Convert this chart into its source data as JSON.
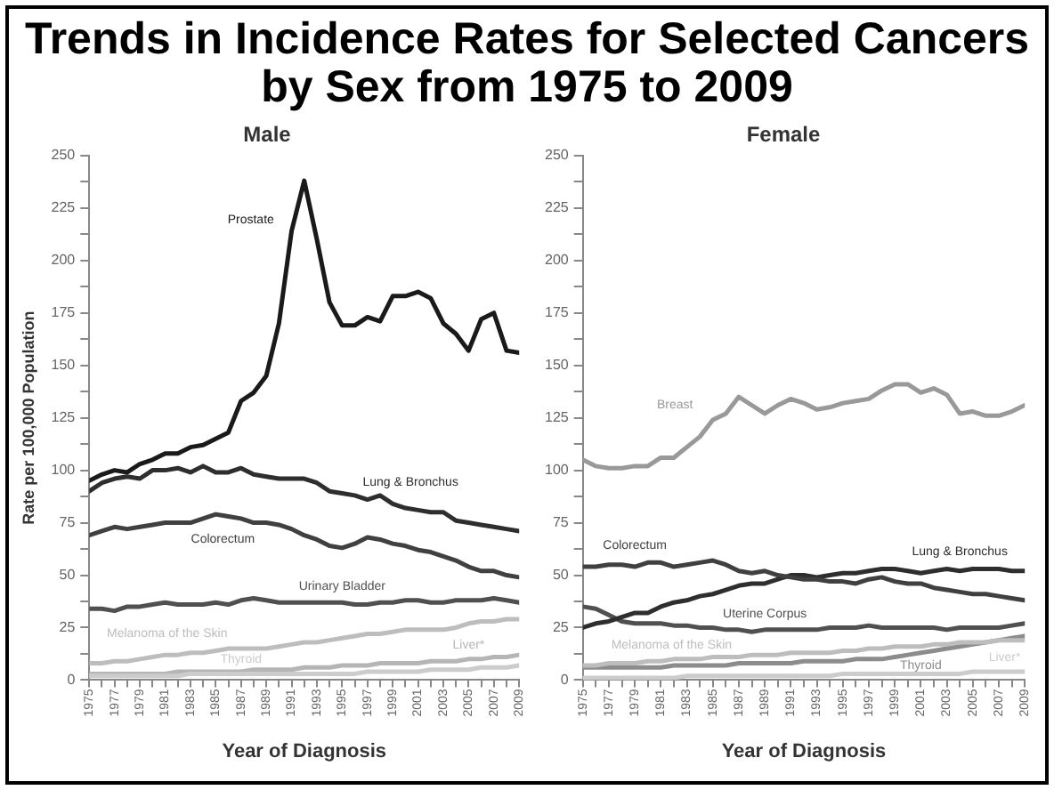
{
  "chart_data": [
    {
      "type": "line",
      "title": "Trends in Incidence Rates for Selected Cancers by Sex from 1975 to 2009",
      "subtitle": "Male",
      "xlabel": "Year of Diagnosis",
      "ylabel": "Rate per 100,000 Population",
      "x": [
        1975,
        1976,
        1977,
        1978,
        1979,
        1980,
        1981,
        1982,
        1983,
        1984,
        1985,
        1986,
        1987,
        1988,
        1989,
        1990,
        1991,
        1992,
        1993,
        1994,
        1995,
        1996,
        1997,
        1998,
        1999,
        2000,
        2001,
        2002,
        2003,
        2004,
        2005,
        2006,
        2007,
        2008,
        2009
      ],
      "xlim": [
        1975,
        2009
      ],
      "xticks": [
        1975,
        {
          "value": 1976,
          "label": null
        },
        1977,
        {
          "value": 1978,
          "label": null
        },
        1979,
        {
          "value": 1980,
          "label": null
        },
        1981,
        {
          "value": 1982,
          "label": null
        },
        1983,
        {
          "value": 1984,
          "label": null
        },
        1985,
        {
          "value": 1986,
          "label": null
        },
        1987,
        {
          "value": 1988,
          "label": null
        },
        1989,
        {
          "value": 1990,
          "label": null
        },
        1991,
        {
          "value": 1992,
          "label": null
        },
        1993,
        {
          "value": 1994,
          "label": null
        },
        1995,
        {
          "value": 1996,
          "label": null
        },
        1997,
        {
          "value": 1998,
          "label": null
        },
        1999,
        {
          "value": 2000,
          "label": null
        },
        2001,
        {
          "value": 2002,
          "label": null
        },
        2003,
        {
          "value": 2004,
          "label": null
        },
        2005,
        {
          "value": 2006,
          "label": null
        },
        2007,
        {
          "value": 2008,
          "label": null
        },
        2009
      ],
      "ylim": [
        0,
        250
      ],
      "yticks": [
        0,
        {
          "value": 12.5,
          "label": null
        },
        25,
        {
          "value": 37.5,
          "label": null
        },
        50,
        {
          "value": 62.5,
          "label": null
        },
        75,
        {
          "value": 87.5,
          "label": null
        },
        100,
        {
          "value": 112.5,
          "label": null
        },
        125,
        {
          "value": 137.5,
          "label": null
        },
        150,
        {
          "value": 162.5,
          "label": null
        },
        175,
        {
          "value": 187.5,
          "label": null
        },
        200,
        {
          "value": 212.5,
          "label": null
        },
        225,
        {
          "value": 237.5,
          "label": null
        },
        250
      ],
      "grid": false,
      "legend": false,
      "series": [
        {
          "name": "Prostate",
          "color": "#1a1a1a",
          "values": [
            95,
            98,
            100,
            99,
            103,
            105,
            108,
            108,
            111,
            112,
            115,
            118,
            133,
            137,
            145,
            170,
            214,
            238,
            210,
            180,
            169,
            169,
            173,
            171,
            183,
            183,
            185,
            182,
            170,
            165,
            157,
            172,
            175,
            157,
            156
          ]
        },
        {
          "name": "Lung & Bronchus",
          "color": "#2e2e2e",
          "values": [
            90,
            94,
            96,
            97,
            96,
            100,
            100,
            101,
            99,
            102,
            99,
            99,
            101,
            98,
            97,
            96,
            96,
            96,
            94,
            90,
            89,
            88,
            86,
            88,
            84,
            82,
            81,
            80,
            80,
            76,
            75,
            74,
            73,
            72,
            71
          ]
        },
        {
          "name": "Colorectum",
          "color": "#404040",
          "values": [
            69,
            71,
            73,
            72,
            73,
            74,
            75,
            75,
            75,
            77,
            79,
            78,
            77,
            75,
            75,
            74,
            72,
            69,
            67,
            64,
            63,
            65,
            68,
            67,
            65,
            64,
            62,
            61,
            59,
            57,
            54,
            52,
            52,
            50,
            49
          ]
        },
        {
          "name": "Urinary Bladder",
          "color": "#505050",
          "values": [
            34,
            34,
            33,
            35,
            35,
            36,
            37,
            36,
            36,
            36,
            37,
            36,
            38,
            39,
            38,
            37,
            37,
            37,
            37,
            37,
            37,
            36,
            36,
            37,
            37,
            38,
            38,
            37,
            37,
            38,
            38,
            38,
            39,
            38,
            37
          ]
        },
        {
          "name": "Melanoma of the Skin",
          "color": "#bdbdbd",
          "values": [
            8,
            8,
            9,
            9,
            10,
            11,
            12,
            12,
            13,
            13,
            14,
            15,
            15,
            15,
            15,
            16,
            17,
            18,
            18,
            19,
            20,
            21,
            22,
            22,
            23,
            24,
            24,
            24,
            24,
            25,
            27,
            28,
            28,
            29,
            29
          ]
        },
        {
          "name": "Thyroid",
          "color": "#cccccc",
          "values": [
            2,
            2,
            2,
            2,
            2,
            2,
            2,
            2,
            3,
            3,
            3,
            3,
            3,
            3,
            3,
            3,
            3,
            3,
            3,
            3,
            3,
            3,
            4,
            4,
            4,
            4,
            4,
            5,
            5,
            5,
            5,
            6,
            6,
            6,
            7
          ]
        },
        {
          "name": "Liver*",
          "color": "#b5b5b5",
          "values": [
            3,
            3,
            3,
            3,
            3,
            3,
            3,
            4,
            4,
            4,
            4,
            4,
            4,
            5,
            5,
            5,
            5,
            6,
            6,
            6,
            7,
            7,
            7,
            8,
            8,
            8,
            8,
            9,
            9,
            9,
            10,
            10,
            11,
            11,
            12
          ]
        }
      ]
    },
    {
      "type": "line",
      "title": "Female",
      "xlabel": "Year of Diagnosis",
      "x": [
        1975,
        1976,
        1977,
        1978,
        1979,
        1980,
        1981,
        1982,
        1983,
        1984,
        1985,
        1986,
        1987,
        1988,
        1989,
        1990,
        1991,
        1992,
        1993,
        1994,
        1995,
        1996,
        1997,
        1998,
        1999,
        2000,
        2001,
        2002,
        2003,
        2004,
        2005,
        2006,
        2007,
        2008,
        2009
      ],
      "xlim": [
        1975,
        2009
      ],
      "xticks": [
        1975,
        {
          "value": 1976,
          "label": null
        },
        1977,
        {
          "value": 1978,
          "label": null
        },
        1979,
        {
          "value": 1980,
          "label": null
        },
        1981,
        {
          "value": 1982,
          "label": null
        },
        1983,
        {
          "value": 1984,
          "label": null
        },
        1985,
        {
          "value": 1986,
          "label": null
        },
        1987,
        {
          "value": 1988,
          "label": null
        },
        1989,
        {
          "value": 1990,
          "label": null
        },
        1991,
        {
          "value": 1992,
          "label": null
        },
        1993,
        {
          "value": 1994,
          "label": null
        },
        1995,
        {
          "value": 1996,
          "label": null
        },
        1997,
        {
          "value": 1998,
          "label": null
        },
        1999,
        {
          "value": 2000,
          "label": null
        },
        2001,
        {
          "value": 2002,
          "label": null
        },
        2003,
        {
          "value": 2004,
          "label": null
        },
        2005,
        {
          "value": 2006,
          "label": null
        },
        2007,
        {
          "value": 2008,
          "label": null
        },
        2009
      ],
      "ylim": [
        0,
        250
      ],
      "yticks": [
        0,
        {
          "value": 12.5,
          "label": null
        },
        25,
        {
          "value": 37.5,
          "label": null
        },
        50,
        {
          "value": 62.5,
          "label": null
        },
        75,
        {
          "value": 87.5,
          "label": null
        },
        100,
        {
          "value": 112.5,
          "label": null
        },
        125,
        {
          "value": 137.5,
          "label": null
        },
        150,
        {
          "value": 162.5,
          "label": null
        },
        175,
        {
          "value": 187.5,
          "label": null
        },
        200,
        {
          "value": 212.5,
          "label": null
        },
        225,
        {
          "value": 237.5,
          "label": null
        },
        250
      ],
      "grid": false,
      "legend": false,
      "series": [
        {
          "name": "Breast",
          "color": "#999999",
          "values": [
            105,
            102,
            101,
            101,
            102,
            102,
            106,
            106,
            111,
            116,
            124,
            127,
            135,
            131,
            127,
            131,
            134,
            132,
            129,
            130,
            132,
            133,
            134,
            138,
            141,
            141,
            137,
            139,
            136,
            127,
            128,
            126,
            126,
            128,
            131
          ]
        },
        {
          "name": "Colorectum",
          "color": "#404040",
          "values": [
            54,
            54,
            55,
            55,
            54,
            56,
            56,
            54,
            55,
            56,
            57,
            55,
            52,
            51,
            52,
            50,
            49,
            48,
            48,
            47,
            47,
            46,
            48,
            49,
            47,
            46,
            46,
            44,
            43,
            42,
            41,
            41,
            40,
            39,
            38
          ]
        },
        {
          "name": "Lung & Bronchus",
          "color": "#2e2e2e",
          "values": [
            25,
            27,
            28,
            30,
            32,
            32,
            35,
            37,
            38,
            40,
            41,
            43,
            45,
            46,
            46,
            48,
            50,
            50,
            49,
            50,
            51,
            51,
            52,
            53,
            53,
            52,
            51,
            52,
            53,
            52,
            53,
            53,
            53,
            52,
            52
          ]
        },
        {
          "name": "Uterine Corpus",
          "color": "#505050",
          "values": [
            35,
            34,
            31,
            28,
            27,
            27,
            27,
            26,
            26,
            25,
            25,
            24,
            24,
            23,
            24,
            24,
            24,
            24,
            24,
            25,
            25,
            25,
            26,
            25,
            25,
            25,
            25,
            25,
            24,
            25,
            25,
            25,
            25,
            26,
            27
          ]
        },
        {
          "name": "Melanoma of the Skin",
          "color": "#bdbdbd",
          "values": [
            7,
            7,
            8,
            8,
            8,
            9,
            9,
            10,
            10,
            10,
            11,
            11,
            11,
            12,
            12,
            12,
            13,
            13,
            13,
            13,
            14,
            14,
            15,
            15,
            16,
            16,
            16,
            17,
            17,
            18,
            18,
            18,
            19,
            19,
            19
          ]
        },
        {
          "name": "Thyroid",
          "color": "#8c8c8c",
          "values": [
            6,
            6,
            6,
            6,
            6,
            6,
            6,
            7,
            7,
            7,
            7,
            7,
            8,
            8,
            8,
            8,
            8,
            9,
            9,
            9,
            9,
            10,
            10,
            10,
            11,
            12,
            13,
            14,
            15,
            16,
            17,
            18,
            19,
            20,
            21
          ]
        },
        {
          "name": "Liver*",
          "color": "#cccccc",
          "values": [
            1,
            1,
            1,
            1,
            1,
            1,
            1,
            1,
            2,
            2,
            2,
            2,
            2,
            2,
            2,
            2,
            2,
            2,
            2,
            2,
            3,
            3,
            3,
            3,
            3,
            3,
            3,
            3,
            3,
            3,
            4,
            4,
            4,
            4,
            4
          ]
        }
      ]
    }
  ]
}
